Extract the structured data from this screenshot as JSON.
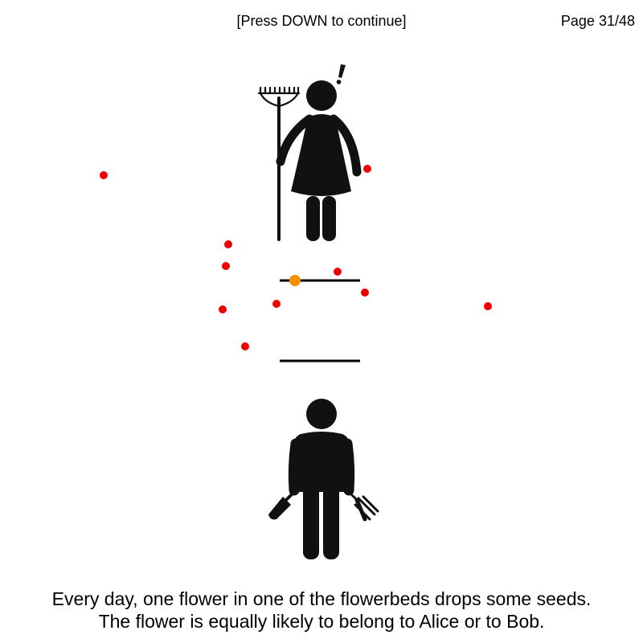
{
  "header": {
    "hint": "[Press DOWN to continue]",
    "page_counter": "Page 31/48"
  },
  "caption": {
    "line1": "Every day, one flower in one of the flowerbeds drops some seeds.",
    "line2": "The flower is equally likely to belong to Alice or to Bob."
  },
  "characters": {
    "alice": {
      "icon": "gardener-woman-with-rake-icon",
      "alert_icon": "exclamation-icon"
    },
    "bob": {
      "icon": "gardener-man-with-tools-icon"
    }
  },
  "colors": {
    "seed": "#ee0000",
    "active_flower": "#f39200",
    "figure": "#111111",
    "bed": "#000000"
  }
}
